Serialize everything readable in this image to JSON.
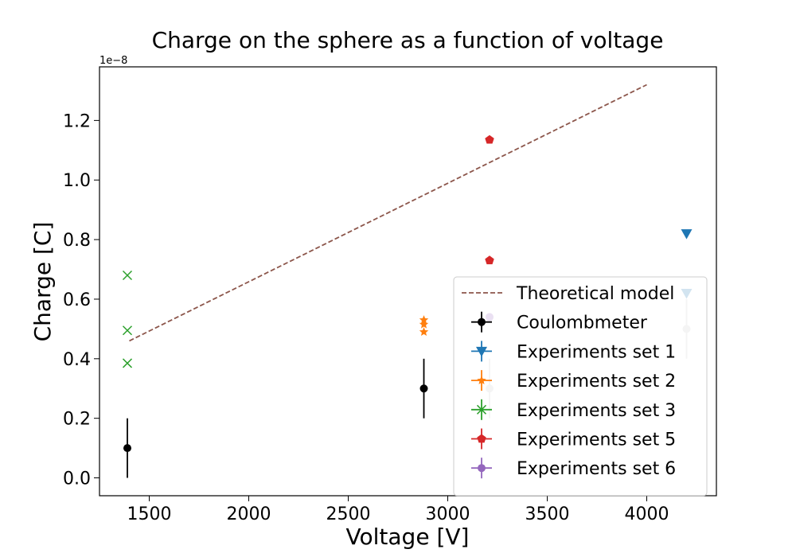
{
  "chart_data": {
    "type": "scatter",
    "title": "Charge on the sphere as a function of voltage",
    "xlabel": "Voltage [V]",
    "ylabel": "Charge [C]",
    "y_offset_label": "1e−8",
    "y_scale": 1e-08,
    "xlim": [
      1250,
      4350
    ],
    "ylim": [
      -0.06,
      1.38
    ],
    "xticks": [
      1500,
      2000,
      2500,
      3000,
      3500,
      4000
    ],
    "xtick_labels": [
      "1500",
      "2000",
      "2500",
      "3000",
      "3500",
      "4000"
    ],
    "yticks": [
      0.0,
      0.2,
      0.4,
      0.6,
      0.8,
      1.0,
      1.2
    ],
    "ytick_labels": [
      "0.0",
      "0.2",
      "0.4",
      "0.6",
      "0.8",
      "1.0",
      "1.2"
    ],
    "grid": false,
    "legend_position": "lower-right",
    "theory": {
      "name": "Theoretical model",
      "color": "#8c564b",
      "x": [
        1400,
        4000
      ],
      "y": [
        0.46,
        1.32
      ]
    },
    "series": [
      {
        "name": "Coulombmeter",
        "color": "#000000",
        "marker": "circle",
        "points": [
          {
            "x": 1390,
            "y": 0.1,
            "yerr": 0.1
          },
          {
            "x": 2880,
            "y": 0.3,
            "yerr": 0.1
          }
        ]
      },
      {
        "name": "Experiments set 1",
        "color": "#1f77b4",
        "marker": "triangle-down",
        "points": [
          {
            "x": 4200,
            "y": 0.82
          },
          {
            "x": 4200,
            "y": 0.62
          }
        ]
      },
      {
        "name": "Experiments set 2",
        "color": "#ff7f0e",
        "marker": "star",
        "points": [
          {
            "x": 2880,
            "y": 0.53
          },
          {
            "x": 2880,
            "y": 0.515
          },
          {
            "x": 2880,
            "y": 0.49
          }
        ]
      },
      {
        "name": "Experiments set 3",
        "color": "#2ca02c",
        "marker": "x",
        "points": [
          {
            "x": 1390,
            "y": 0.68
          },
          {
            "x": 1390,
            "y": 0.495
          },
          {
            "x": 1390,
            "y": 0.385
          }
        ]
      },
      {
        "name": "Experiments set 5",
        "color": "#d62728",
        "marker": "pentagon",
        "points": [
          {
            "x": 3210,
            "y": 1.135
          },
          {
            "x": 3210,
            "y": 0.73
          }
        ]
      },
      {
        "name": "Experiments set 6",
        "color": "#9467bd",
        "marker": "circle",
        "points": [
          {
            "x": 3210,
            "y": 0.54
          }
        ]
      }
    ],
    "faded_points": [
      {
        "x": 3210,
        "y": 0.3,
        "yerr": 0.1,
        "color": "#c8c8c8"
      },
      {
        "x": 4200,
        "y": 0.5,
        "yerr": 0.1,
        "color": "#c8c8c8"
      }
    ]
  }
}
